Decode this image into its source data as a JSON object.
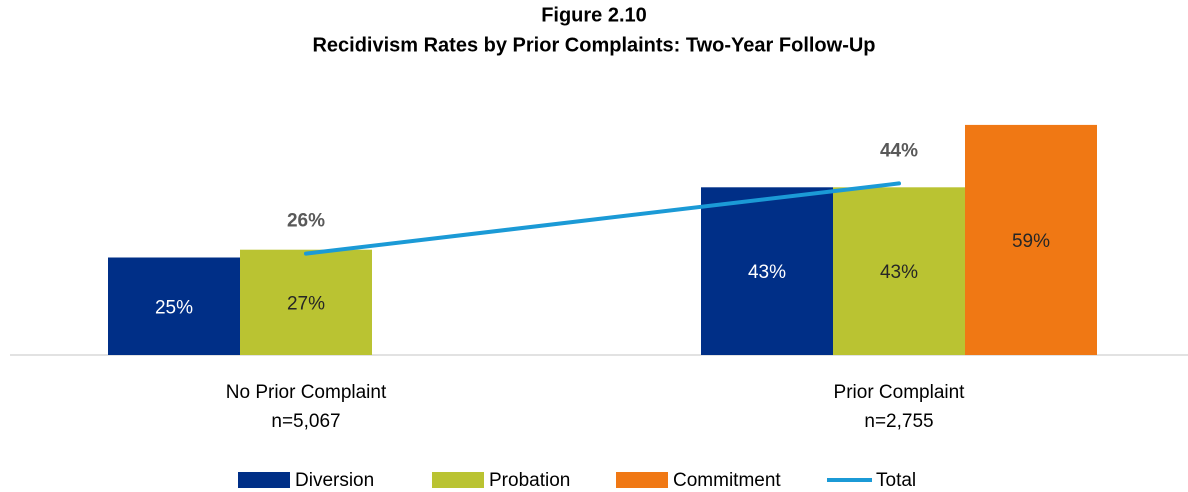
{
  "chart_data": {
    "type": "bar",
    "title": "Figure 2.10",
    "subtitle": "Recidivism Rates by Prior Complaints: Two-Year Follow-Up",
    "categories": [
      "No Prior Complaint",
      "Prior Complaint"
    ],
    "category_counts": [
      "n=5,067",
      "n=2,755"
    ],
    "series": [
      {
        "name": "Diversion",
        "color": "#002f87",
        "values": [
          25,
          43
        ],
        "value_labels": [
          "25%",
          "43%"
        ]
      },
      {
        "name": "Probation",
        "color": "#bac332",
        "values": [
          27,
          43
        ],
        "value_labels": [
          "27%",
          "43%"
        ]
      },
      {
        "name": "Commitment",
        "color": "#f07814",
        "values": [
          null,
          59
        ],
        "value_labels": [
          null,
          "59%"
        ]
      },
      {
        "name": "Total",
        "type": "line",
        "color": "#1b9ad6",
        "values": [
          26,
          44
        ],
        "value_labels": [
          "26%",
          "44%"
        ]
      }
    ]
  }
}
